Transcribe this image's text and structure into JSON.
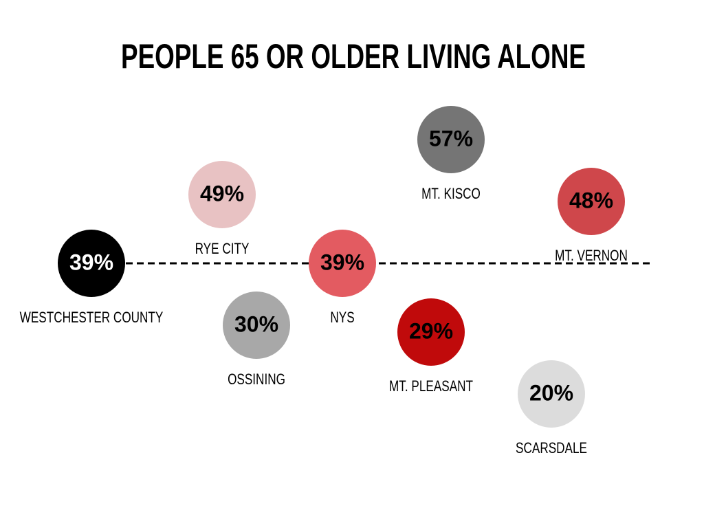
{
  "chart_data": {
    "type": "bubble",
    "title": "PEOPLE 65 OR OLDER LIVING ALONE",
    "categories": [
      "WESTCHESTER COUNTY",
      "RYE CITY",
      "OSSINING",
      "NYS",
      "MT. KISCO",
      "MT. PLEASANT",
      "MT. VERNON",
      "SCARSDALE"
    ],
    "values": [
      39,
      49,
      30,
      39,
      57,
      29,
      48,
      20
    ],
    "value_labels": [
      "39%",
      "49%",
      "30%",
      "39%",
      "57%",
      "29%",
      "48%",
      "20%"
    ],
    "colors": [
      "#000000",
      "#e8c2c3",
      "#a8a8a8",
      "#e35b61",
      "#757575",
      "#c00a0b",
      "#cf474b",
      "#dcdcdc"
    ]
  }
}
